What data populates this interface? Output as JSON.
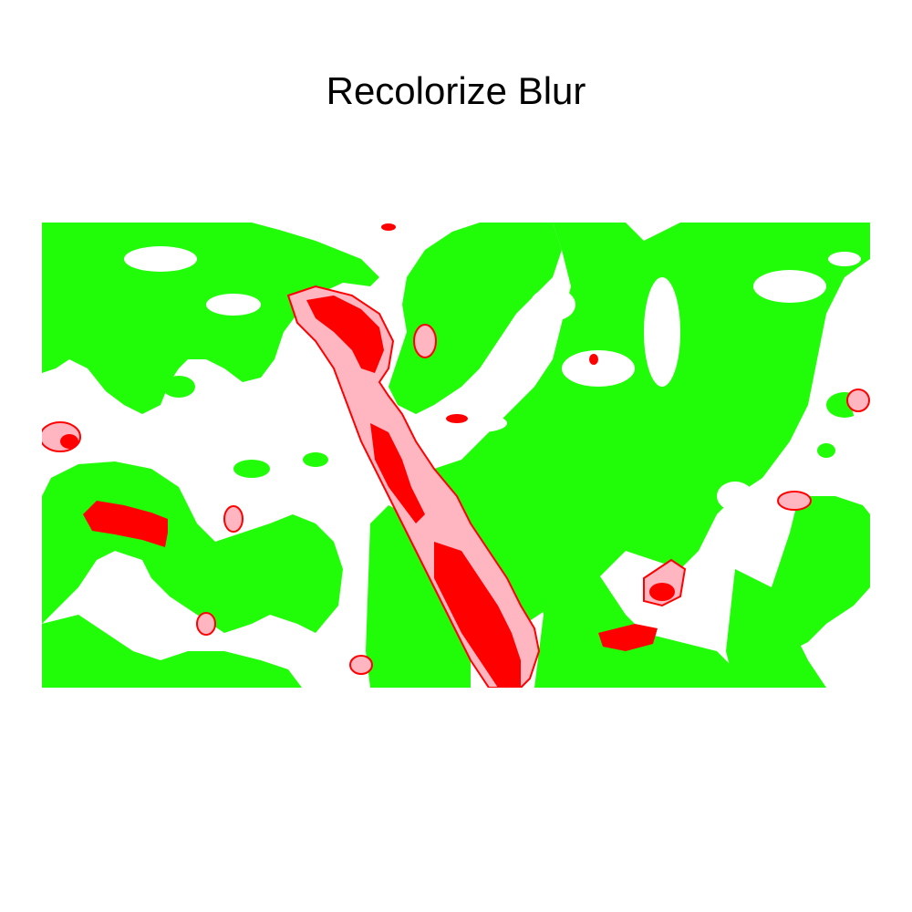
{
  "title": "Recolorize Blur",
  "colors": {
    "background": "#ffffff",
    "green": "#21fd08",
    "pink": "#ffb6c1",
    "red": "#ff0000",
    "outline": "#ff0000"
  },
  "legend_classes": [
    "green",
    "pink",
    "red",
    "white"
  ]
}
